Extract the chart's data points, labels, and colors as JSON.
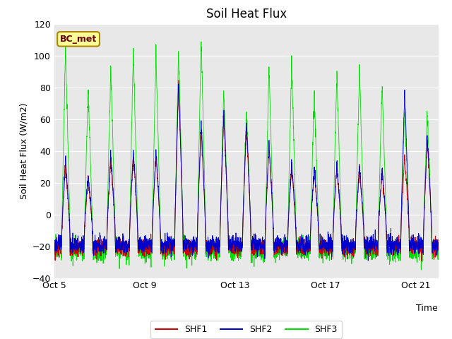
{
  "title": "Soil Heat Flux",
  "ylabel": "Soil Heat Flux (W/m2)",
  "xlabel": "Time",
  "ylim": [
    -40,
    120
  ],
  "yticks": [
    -40,
    -20,
    0,
    20,
    40,
    60,
    80,
    100,
    120
  ],
  "xtick_labels": [
    "Oct 5",
    "Oct 9",
    "Oct 13",
    "Oct 17",
    "Oct 21"
  ],
  "xtick_positions": [
    0,
    4,
    8,
    12,
    16
  ],
  "legend_labels": [
    "SHF1",
    "SHF2",
    "SHF3"
  ],
  "line_colors": [
    "#cc0000",
    "#0000cc",
    "#00dd00"
  ],
  "bg_color": "#e8e8e8",
  "annotation_text": "BC_met",
  "annotation_bg": "#ffff99",
  "annotation_border": "#aa8800",
  "n_days": 17,
  "pts_per_day": 144,
  "day_peaks_shf3": [
    106,
    79,
    92,
    103,
    101,
    103,
    111,
    76,
    64,
    91,
    97,
    76,
    89,
    91,
    82,
    65,
    65
  ],
  "day_peaks_shf1": [
    30,
    22,
    35,
    38,
    37,
    82,
    54,
    63,
    55,
    44,
    30,
    28,
    30,
    28,
    27,
    37,
    47
  ],
  "day_peaks_shf2": [
    35,
    25,
    38,
    40,
    40,
    85,
    58,
    65,
    58,
    46,
    32,
    30,
    32,
    30,
    28,
    78,
    48
  ],
  "night_base": -20,
  "night_noise": 5
}
